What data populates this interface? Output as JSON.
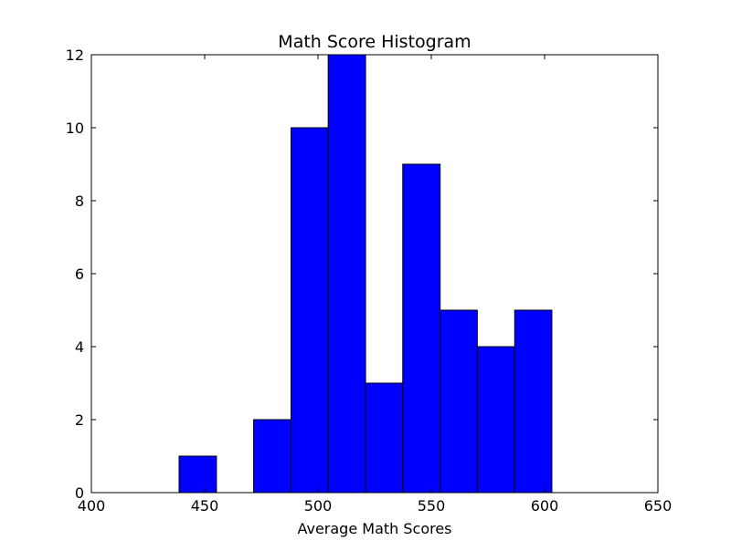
{
  "chart_data": {
    "type": "bar",
    "title": "Math Score Histogram",
    "xlabel": "Average Math Scores",
    "ylabel": "",
    "xlim": [
      400,
      650
    ],
    "ylim": [
      0,
      12
    ],
    "x_ticks": [
      400,
      450,
      500,
      550,
      600,
      650
    ],
    "y_ticks": [
      0,
      2,
      4,
      6,
      8,
      10,
      12
    ],
    "grid": false,
    "bar_color": "#0000ff",
    "edge_color": "#000000",
    "bins": [
      {
        "start": 438.7,
        "end": 455.2,
        "count": 1
      },
      {
        "start": 455.2,
        "end": 471.6,
        "count": 0
      },
      {
        "start": 471.6,
        "end": 488.1,
        "count": 2
      },
      {
        "start": 488.1,
        "end": 504.5,
        "count": 10
      },
      {
        "start": 504.5,
        "end": 521.0,
        "count": 12
      },
      {
        "start": 521.0,
        "end": 537.4,
        "count": 3
      },
      {
        "start": 537.4,
        "end": 553.9,
        "count": 9
      },
      {
        "start": 553.9,
        "end": 570.3,
        "count": 5
      },
      {
        "start": 570.3,
        "end": 586.8,
        "count": 4
      },
      {
        "start": 586.8,
        "end": 603.2,
        "count": 5
      }
    ]
  }
}
